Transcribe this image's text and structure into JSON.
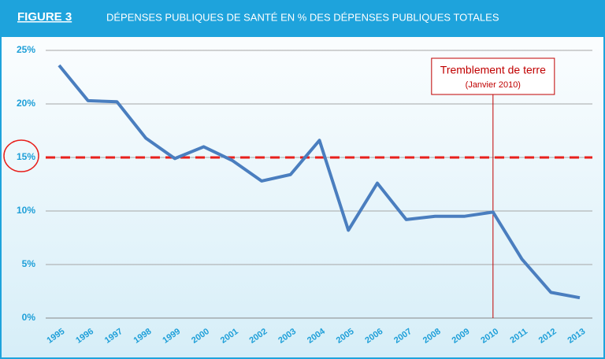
{
  "chart_data": {
    "type": "line",
    "title": "FIGURE 3",
    "subtitle": "DÉPENSES PUBLIQUES DE SANTÉ EN % DES DÉPENSES PUBLIQUES TOTALES",
    "categories": [
      "1995",
      "1996",
      "1997",
      "1998",
      "1999",
      "2000",
      "2001",
      "2002",
      "2003",
      "2004",
      "2005",
      "2006",
      "2007",
      "2008",
      "2009",
      "2010",
      "2011",
      "2012",
      "2013"
    ],
    "series": [
      {
        "color": "#4a7ebf",
        "values": [
          23.6,
          20.3,
          20.2,
          16.8,
          14.9,
          16.0,
          14.7,
          12.8,
          13.4,
          16.6,
          8.2,
          12.6,
          9.2,
          9.5,
          9.5,
          9.9,
          5.5,
          2.4,
          1.9
        ]
      }
    ],
    "ylim": [
      0,
      25
    ],
    "yticks": [
      {
        "value": 0,
        "label": "0%"
      },
      {
        "value": 5,
        "label": "5%"
      },
      {
        "value": 10,
        "label": "10%"
      },
      {
        "value": 15,
        "label": "15%"
      },
      {
        "value": 20,
        "label": "20%"
      },
      {
        "value": 25,
        "label": "25%"
      }
    ],
    "grid": true,
    "reference_line": {
      "value": 15,
      "color": "#e8201c"
    },
    "annotations": [
      {
        "text": "Tremblement de terre",
        "subtext": "(Janvier 2010)",
        "x": "2010",
        "color": "#c00000"
      }
    ]
  }
}
